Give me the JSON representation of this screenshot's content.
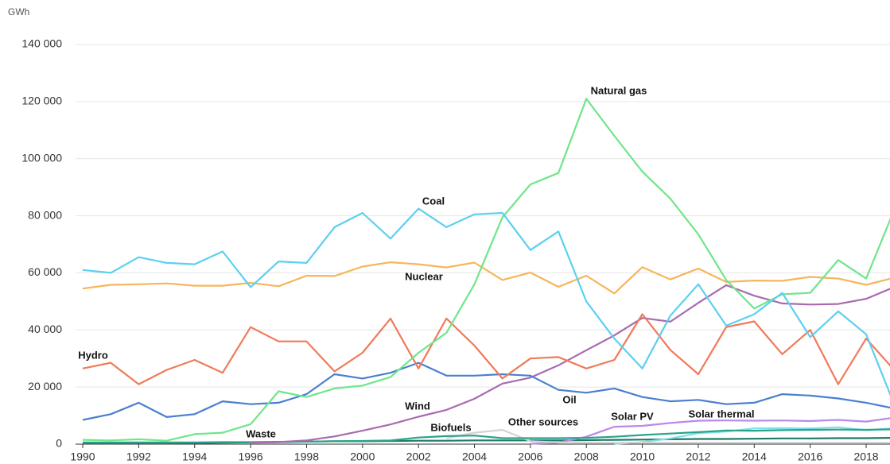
{
  "chart_data": {
    "type": "line",
    "y_label": "GWh",
    "x": [
      1990,
      1991,
      1992,
      1993,
      1994,
      1995,
      1996,
      1997,
      1998,
      1999,
      2000,
      2001,
      2002,
      2003,
      2004,
      2005,
      2006,
      2007,
      2008,
      2009,
      2010,
      2011,
      2012,
      2013,
      2014,
      2015,
      2016,
      2017,
      2018,
      2019
    ],
    "xlim": [
      1990,
      2019
    ],
    "xticks": [
      1990,
      1992,
      1994,
      1996,
      1998,
      2000,
      2002,
      2004,
      2006,
      2008,
      2010,
      2012,
      2014,
      2016,
      2018
    ],
    "ylim": [
      0,
      140000
    ],
    "yticks": [
      0,
      {
        "value": 20000,
        "label": "20 000"
      },
      {
        "value": 40000,
        "label": "40 000"
      },
      {
        "value": 60000,
        "label": "60 000"
      },
      {
        "value": 80000,
        "label": "80 000"
      },
      {
        "value": 100000,
        "label": "100 000"
      },
      {
        "value": 120000,
        "label": "120 000"
      },
      {
        "value": 140000,
        "label": "140 000"
      }
    ],
    "grid": true,
    "series": [
      {
        "name": "Coal",
        "color": "#5bd0f0",
        "values": [
          61000,
          60000,
          65500,
          63500,
          63000,
          67500,
          55000,
          64000,
          63500,
          76000,
          81000,
          72000,
          82500,
          76000,
          80500,
          81000,
          68000,
          74500,
          50000,
          37000,
          26500,
          45000,
          56000,
          41500,
          45500,
          53000,
          37500,
          46500,
          38500,
          14000
        ]
      },
      {
        "name": "Natural gas",
        "color": "#6ee68a",
        "values": [
          1500,
          1300,
          1700,
          1200,
          3500,
          4000,
          7000,
          18500,
          16500,
          19500,
          20500,
          23500,
          32000,
          39000,
          56000,
          79500,
          91000,
          95000,
          121000,
          108000,
          95500,
          86000,
          73500,
          57500,
          47500,
          52500,
          53000,
          64500,
          58000,
          82000
        ]
      },
      {
        "name": "Nuclear",
        "color": "#f7b55a",
        "values": [
          54500,
          55800,
          56000,
          56300,
          55500,
          55500,
          56500,
          55300,
          59000,
          58900,
          62200,
          63700,
          63000,
          61900,
          63600,
          57500,
          60100,
          55100,
          59000,
          52800,
          62000,
          57700,
          61500,
          56800,
          57300,
          57200,
          58600,
          58000,
          55800,
          58300
        ]
      },
      {
        "name": "Hydro",
        "color": "#f07a5a",
        "values": [
          26500,
          28500,
          21000,
          26000,
          29500,
          25000,
          41000,
          36000,
          36000,
          25500,
          32000,
          44000,
          26500,
          44000,
          34500,
          23000,
          30000,
          30500,
          26500,
          29500,
          45500,
          33000,
          24500,
          41000,
          43000,
          31500,
          40000,
          21000,
          37000,
          26000
        ]
      },
      {
        "name": "Oil",
        "color": "#4a7fcf",
        "values": [
          8500,
          10500,
          14500,
          9500,
          10500,
          15000,
          14000,
          14500,
          17500,
          24500,
          23000,
          25000,
          28500,
          24000,
          24000,
          24500,
          24000,
          19000,
          18000,
          19500,
          16500,
          15000,
          15500,
          14000,
          14500,
          17500,
          17000,
          16000,
          14500,
          12500
        ]
      },
      {
        "name": "Wind",
        "color": "#a86ab0",
        "values": [
          null,
          null,
          null,
          null,
          null,
          null,
          500,
          700,
          1300,
          2700,
          4700,
          6900,
          9600,
          12000,
          15900,
          21200,
          23300,
          27600,
          32900,
          38100,
          44200,
          42900,
          49500,
          55700,
          52000,
          49300,
          48900,
          49100,
          50900,
          55000
        ]
      },
      {
        "name": "Biofuels",
        "color": "#2aa38a",
        "values": [
          600,
          600,
          600,
          600,
          600,
          700,
          700,
          800,
          900,
          1000,
          1100,
          1300,
          2300,
          2800,
          3000,
          2100,
          2100,
          2100,
          2200,
          2600,
          3200,
          3700,
          4200,
          4800,
          4700,
          4900,
          5000,
          5100,
          5000,
          5200
        ]
      },
      {
        "name": "Other sources",
        "color": "#d4d4d4",
        "values": [
          null,
          null,
          null,
          null,
          null,
          null,
          null,
          null,
          null,
          null,
          null,
          null,
          null,
          2000,
          4000,
          5000,
          1000,
          600,
          500,
          500,
          500,
          500,
          500,
          500,
          500,
          500,
          500,
          500,
          500,
          500
        ]
      },
      {
        "name": "Solar PV",
        "color": "#b98ae8",
        "values": [
          null,
          null,
          null,
          null,
          null,
          null,
          null,
          null,
          null,
          null,
          null,
          null,
          null,
          null,
          null,
          null,
          100,
          500,
          2600,
          6100,
          6400,
          7400,
          8200,
          8300,
          8200,
          8300,
          8100,
          8500,
          7900,
          9300
        ]
      },
      {
        "name": "Solar thermal",
        "color": "#7ee0e8",
        "values": [
          null,
          null,
          null,
          null,
          null,
          null,
          null,
          null,
          null,
          null,
          null,
          null,
          null,
          null,
          null,
          null,
          null,
          null,
          null,
          100,
          700,
          2000,
          3800,
          4400,
          5500,
          5600,
          5500,
          5900,
          4900,
          5500
        ]
      },
      {
        "name": "Waste",
        "color": "#1f7a6a",
        "values": [
          300,
          300,
          300,
          300,
          400,
          500,
          600,
          700,
          900,
          1000,
          1000,
          1100,
          1200,
          1200,
          1300,
          1300,
          1300,
          1300,
          1400,
          1500,
          1600,
          1700,
          1800,
          1800,
          1900,
          2000,
          2000,
          2100,
          2100,
          2200
        ]
      }
    ]
  }
}
